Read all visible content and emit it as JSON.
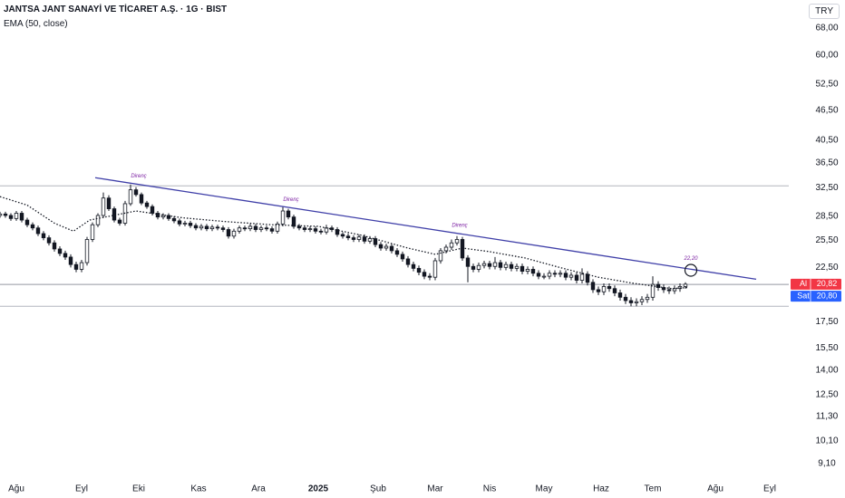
{
  "chart_data": {
    "type": "candlestick",
    "title": "JANTSA JANT SANAYİ VE TİCARET A.Ş. · 1G · BIST",
    "subtitle": "EMA (50, close)",
    "currency": "TRY",
    "log_scale": true,
    "ylim": [
      8.5,
      77.4
    ],
    "yticks": [
      {
        "value": 68,
        "label": "68,00"
      },
      {
        "value": 60,
        "label": "60,00"
      },
      {
        "value": 52.5,
        "label": "52,50"
      },
      {
        "value": 46.5,
        "label": "46,50"
      },
      {
        "value": 40.5,
        "label": "40,50"
      },
      {
        "value": 36.5,
        "label": "36,50"
      },
      {
        "value": 32.5,
        "label": "32,50"
      },
      {
        "value": 28.5,
        "label": "28,50"
      },
      {
        "value": 25.5,
        "label": "25,50"
      },
      {
        "value": 22.5,
        "label": "22,50"
      },
      {
        "value": 17.5,
        "label": "17,50"
      },
      {
        "value": 15.5,
        "label": "15,50"
      },
      {
        "value": 14,
        "label": "14,00"
      },
      {
        "value": 12.5,
        "label": "12,50"
      },
      {
        "value": 11.3,
        "label": "11,30"
      },
      {
        "value": 10.1,
        "label": "10,10"
      },
      {
        "value": 9.1,
        "label": "9,10"
      }
    ],
    "xlim": [
      -6,
      284
    ],
    "xticks": [
      {
        "value": 0,
        "label": "Ağu"
      },
      {
        "value": 24,
        "label": "Eyl"
      },
      {
        "value": 45,
        "label": "Eki"
      },
      {
        "value": 67,
        "label": "Kas"
      },
      {
        "value": 89,
        "label": "Ara"
      },
      {
        "value": 111,
        "label": "2025"
      },
      {
        "value": 133,
        "label": "Şub"
      },
      {
        "value": 154,
        "label": "Mar"
      },
      {
        "value": 174,
        "label": "Nis"
      },
      {
        "value": 194,
        "label": "May"
      },
      {
        "value": 215,
        "label": "Haz"
      },
      {
        "value": 234,
        "label": "Tem"
      },
      {
        "value": 257,
        "label": "Ağu"
      },
      {
        "value": 277,
        "label": "Eyl"
      }
    ],
    "up_color": "#ffffff",
    "down_color": "#131722",
    "wick_color": "#131722",
    "x": [
      -6,
      -4,
      -2,
      0,
      2,
      4,
      6,
      8,
      10,
      12,
      14,
      16,
      18,
      20,
      22,
      24,
      26,
      28,
      30,
      32,
      34,
      36,
      38,
      40,
      42,
      44,
      46,
      48,
      50,
      52,
      54,
      56,
      58,
      60,
      62,
      64,
      66,
      68,
      70,
      72,
      74,
      76,
      78,
      80,
      82,
      84,
      86,
      88,
      90,
      92,
      94,
      96,
      98,
      100,
      102,
      104,
      106,
      108,
      110,
      112,
      114,
      116,
      118,
      120,
      122,
      124,
      126,
      128,
      130,
      132,
      134,
      136,
      138,
      140,
      142,
      144,
      146,
      148,
      150,
      152,
      154,
      156,
      158,
      160,
      162,
      164,
      166,
      168,
      170,
      172,
      174,
      176,
      178,
      180,
      182,
      184,
      186,
      188,
      190,
      192,
      194,
      196,
      198,
      200,
      202,
      204,
      206,
      208,
      210,
      212,
      214,
      216,
      218,
      220,
      222,
      224,
      226,
      228,
      230,
      232,
      234,
      236,
      238,
      240,
      242,
      244,
      246
    ],
    "open": [
      28.6,
      28.8,
      28.6,
      28.2,
      28.9,
      28.0,
      27.4,
      27.0,
      26.3,
      25.8,
      25.2,
      24.5,
      24.0,
      23.6,
      22.8,
      22.3,
      23.0,
      25.6,
      27.4,
      28.6,
      31.0,
      29.5,
      28.0,
      27.6,
      30.2,
      32.2,
      31.5,
      30.3,
      29.8,
      28.9,
      28.4,
      28.6,
      28.2,
      27.9,
      27.5,
      27.6,
      27.3,
      27.0,
      27.2,
      26.9,
      27.1,
      27.0,
      26.8,
      26.0,
      26.6,
      27.0,
      26.9,
      27.2,
      26.8,
      27.0,
      26.9,
      26.6,
      27.5,
      29.2,
      28.4,
      27.2,
      27.0,
      26.8,
      26.9,
      26.6,
      26.5,
      27.0,
      26.8,
      26.2,
      26.0,
      25.8,
      25.6,
      25.9,
      25.4,
      25.7,
      25.0,
      24.6,
      24.8,
      24.3,
      23.9,
      23.4,
      22.8,
      22.4,
      22.0,
      21.6,
      21.5,
      23.2,
      24.3,
      24.7,
      25.2,
      25.6,
      23.5,
      22.6,
      22.3,
      22.7,
      22.9,
      22.6,
      23.0,
      22.5,
      22.8,
      22.4,
      22.6,
      22.1,
      22.3,
      21.9,
      21.6,
      21.6,
      21.9,
      21.8,
      21.9,
      21.5,
      21.7,
      21.2,
      21.8,
      21.0,
      20.3,
      20.1,
      20.6,
      20.4,
      20.0,
      19.6,
      19.3,
      19.1,
      19.2,
      19.4,
      19.6,
      20.8,
      20.5,
      20.3,
      20.2,
      20.4,
      20.6
    ],
    "high": [
      29.1,
      29.1,
      28.9,
      29.2,
      29.2,
      28.3,
      27.7,
      27.3,
      26.6,
      26.1,
      25.5,
      24.8,
      24.3,
      23.9,
      23.1,
      23.3,
      25.9,
      27.7,
      28.9,
      31.8,
      31.4,
      29.8,
      28.3,
      30.6,
      33.0,
      32.6,
      31.8,
      30.6,
      30.1,
      29.2,
      28.9,
      28.9,
      28.5,
      28.2,
      27.9,
      27.9,
      27.6,
      27.5,
      27.5,
      27.4,
      27.4,
      27.3,
      27.1,
      26.9,
      27.3,
      27.3,
      27.5,
      27.5,
      27.3,
      27.3,
      27.2,
      27.8,
      29.8,
      29.5,
      28.7,
      27.5,
      27.3,
      27.2,
      27.2,
      26.9,
      27.4,
      27.3,
      27.1,
      26.5,
      26.3,
      26.1,
      26.2,
      26.2,
      26.0,
      26.0,
      25.3,
      25.1,
      25.1,
      24.6,
      24.2,
      23.7,
      23.1,
      22.7,
      22.3,
      21.9,
      23.5,
      24.6,
      25.0,
      25.6,
      26.0,
      25.9,
      23.8,
      22.9,
      23.0,
      23.2,
      23.2,
      23.6,
      23.3,
      23.1,
      23.1,
      22.9,
      22.9,
      22.6,
      22.6,
      22.2,
      21.9,
      22.2,
      22.2,
      22.2,
      22.2,
      22.0,
      22.0,
      22.4,
      22.1,
      21.3,
      20.6,
      20.9,
      20.9,
      20.7,
      20.3,
      19.9,
      19.6,
      19.5,
      19.7,
      19.9,
      21.6,
      21.1,
      20.8,
      20.6,
      20.7,
      20.9,
      21.0
    ],
    "low": [
      28.3,
      28.3,
      27.9,
      27.9,
      27.7,
      27.1,
      26.7,
      26.0,
      25.5,
      24.9,
      24.2,
      23.7,
      23.3,
      22.5,
      22.0,
      22.0,
      22.7,
      25.3,
      27.1,
      28.3,
      29.2,
      27.7,
      27.3,
      27.3,
      29.9,
      31.2,
      30.0,
      29.5,
      28.6,
      28.1,
      28.1,
      27.9,
      27.6,
      27.2,
      27.2,
      27.0,
      26.7,
      26.7,
      26.6,
      26.6,
      26.7,
      26.5,
      25.7,
      25.7,
      26.3,
      26.6,
      26.6,
      26.5,
      26.5,
      26.6,
      26.3,
      26.3,
      27.2,
      28.1,
      26.9,
      26.7,
      26.5,
      26.5,
      26.3,
      26.2,
      26.2,
      26.5,
      25.9,
      25.7,
      25.5,
      25.3,
      25.3,
      25.1,
      25.1,
      24.7,
      24.3,
      24.3,
      24.0,
      23.6,
      23.1,
      22.5,
      22.1,
      21.7,
      21.3,
      21.2,
      21.2,
      22.9,
      24.0,
      24.4,
      24.9,
      23.2,
      21.0,
      22.0,
      22.0,
      22.4,
      22.3,
      22.3,
      22.2,
      22.2,
      22.1,
      22.1,
      21.8,
      21.8,
      21.6,
      21.3,
      21.3,
      21.3,
      21.5,
      21.5,
      21.2,
      21.2,
      20.9,
      20.9,
      20.7,
      20.0,
      19.8,
      19.8,
      20.1,
      19.7,
      19.3,
      19.0,
      18.8,
      18.8,
      18.9,
      19.1,
      19.3,
      20.2,
      20.0,
      19.9,
      19.9,
      20.1,
      20.4
    ],
    "close": [
      28.8,
      28.6,
      28.2,
      28.9,
      28.0,
      27.4,
      27.0,
      26.3,
      25.8,
      25.2,
      24.5,
      24.0,
      23.6,
      22.8,
      22.3,
      23.0,
      25.6,
      27.4,
      28.6,
      31.0,
      29.5,
      28.0,
      27.6,
      30.2,
      32.2,
      31.5,
      30.3,
      29.8,
      28.9,
      28.4,
      28.6,
      28.2,
      27.9,
      27.5,
      27.6,
      27.3,
      27.0,
      27.2,
      26.9,
      27.1,
      27.0,
      26.8,
      26.0,
      26.6,
      27.0,
      26.9,
      27.2,
      26.8,
      27.0,
      26.9,
      26.6,
      27.5,
      29.2,
      28.4,
      27.2,
      27.0,
      26.8,
      26.9,
      26.6,
      26.5,
      27.0,
      26.8,
      26.2,
      26.0,
      25.8,
      25.6,
      25.9,
      25.4,
      25.7,
      25.0,
      24.6,
      24.8,
      24.3,
      23.9,
      23.4,
      22.8,
      22.4,
      22.0,
      21.6,
      21.5,
      23.2,
      24.3,
      24.7,
      25.2,
      25.6,
      23.5,
      22.6,
      22.3,
      22.7,
      22.9,
      22.6,
      23.0,
      22.5,
      22.8,
      22.4,
      22.6,
      22.1,
      22.3,
      21.9,
      21.6,
      21.6,
      21.9,
      21.8,
      21.9,
      21.5,
      21.7,
      21.2,
      21.8,
      21.0,
      20.3,
      20.1,
      20.6,
      20.4,
      20.0,
      19.6,
      19.3,
      19.1,
      19.2,
      19.4,
      19.6,
      20.8,
      20.5,
      20.3,
      20.2,
      20.4,
      20.6,
      20.82
    ],
    "ema": {
      "color": "#131722",
      "x": [
        -6,
        4,
        14,
        21,
        27,
        44,
        61,
        77,
        94,
        111,
        127,
        144,
        154,
        164,
        174,
        187,
        201,
        214,
        227,
        241,
        247
      ],
      "values": [
        31.2,
        30.0,
        27.6,
        26.6,
        28.0,
        29.2,
        28.3,
        27.8,
        27.4,
        27.2,
        26.1,
        24.6,
        23.9,
        24.6,
        24.2,
        23.5,
        22.4,
        21.5,
        20.9,
        20.4,
        20.5
      ]
    },
    "trend": {
      "color": "#3f3fa8",
      "x": [
        29,
        272
      ],
      "values": [
        34.05,
        21.3
      ]
    },
    "annotations": [
      {
        "text": "Direnç",
        "x": 45
      },
      {
        "text": "Direnç",
        "x": 101
      },
      {
        "text": "Direnç",
        "x": 163
      }
    ],
    "callout": {
      "x": 248,
      "value": 22.2,
      "label": "22,20"
    },
    "hlines": [
      32.8,
      18.8
    ],
    "bid": {
      "label": "Al",
      "value": 20.82,
      "value_label": "20,82",
      "color": "#f23645"
    },
    "ask": {
      "label": "Sat",
      "value": 20.8,
      "value_label": "20,80",
      "color": "#2962ff"
    }
  }
}
